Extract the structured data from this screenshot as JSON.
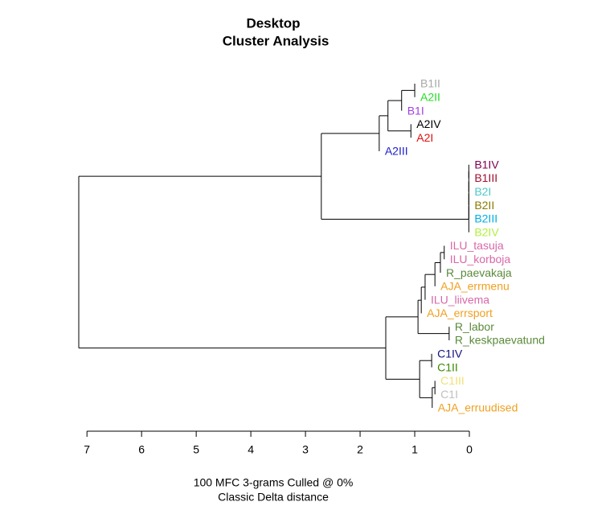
{
  "chart_data": {
    "type": "dendrogram",
    "title": "Desktop",
    "subtitle": "Cluster Analysis",
    "xlabel": [
      "100 MFC 3-grams Culled @ 0%",
      "Classic Delta distance"
    ],
    "leaves": [
      {
        "label": "B1II",
        "color": "#a8a8a8"
      },
      {
        "label": "A2II",
        "color": "#22dd22"
      },
      {
        "label": "B1I",
        "color": "#a040e0"
      },
      {
        "label": "A2IV",
        "color": "#000000"
      },
      {
        "label": "A2I",
        "color": "#e01010"
      },
      {
        "label": "A2III",
        "color": "#2020cc"
      },
      {
        "label": "B1IV",
        "color": "#800050"
      },
      {
        "label": "B1III",
        "color": "#a01030"
      },
      {
        "label": "B2I",
        "color": "#50c8c8"
      },
      {
        "label": "B2II",
        "color": "#8b7b00"
      },
      {
        "label": "B2III",
        "color": "#00b0e0"
      },
      {
        "label": "B2IV",
        "color": "#b0f040"
      },
      {
        "label": "ILU_tasuja",
        "color": "#d868a8"
      },
      {
        "label": "ILU_korboja",
        "color": "#d868a8"
      },
      {
        "label": "R_paevakaja",
        "color": "#5a8a3a"
      },
      {
        "label": "AJA_errmenu",
        "color": "#f0a020"
      },
      {
        "label": "ILU_liivema",
        "color": "#d868a8"
      },
      {
        "label": "AJA_errsport",
        "color": "#f0a020"
      },
      {
        "label": "R_labor",
        "color": "#5a8a3a"
      },
      {
        "label": "R_keskpaevatund",
        "color": "#5a8a3a"
      },
      {
        "label": "C1IV",
        "color": "#101080"
      },
      {
        "label": "C1II",
        "color": "#3a8a00"
      },
      {
        "label": "C1III",
        "color": "#f0e078"
      },
      {
        "label": "C1I",
        "color": "#c0c0c0"
      },
      {
        "label": "AJA_erruudised",
        "color": "#f0a020"
      }
    ],
    "merges": [
      {
        "children": [
          -1,
          -2
        ],
        "height": 1.0
      },
      {
        "children": [
          1,
          -3
        ],
        "height": 1.24
      },
      {
        "children": [
          -4,
          -5
        ],
        "height": 1.07
      },
      {
        "children": [
          2,
          3
        ],
        "height": 1.49
      },
      {
        "children": [
          4,
          -6
        ],
        "height": 1.65
      },
      {
        "children": [
          -7,
          -8
        ],
        "height": 0.01
      },
      {
        "children": [
          6,
          -9
        ],
        "height": 0.01
      },
      {
        "children": [
          7,
          -10
        ],
        "height": 0.01
      },
      {
        "children": [
          8,
          -11
        ],
        "height": 0.01
      },
      {
        "children": [
          9,
          -12
        ],
        "height": 0.01
      },
      {
        "children": [
          5,
          10
        ],
        "height": 2.71
      },
      {
        "children": [
          -13,
          -14
        ],
        "height": 0.46
      },
      {
        "children": [
          12,
          -15
        ],
        "height": 0.53
      },
      {
        "children": [
          13,
          -16
        ],
        "height": 0.63
      },
      {
        "children": [
          14,
          -17
        ],
        "height": 0.81
      },
      {
        "children": [
          15,
          -18
        ],
        "height": 0.88
      },
      {
        "children": [
          -19,
          -20
        ],
        "height": 0.37
      },
      {
        "children": [
          16,
          17
        ],
        "height": 0.94
      },
      {
        "children": [
          -21,
          -22
        ],
        "height": 0.69
      },
      {
        "children": [
          -23,
          -24
        ],
        "height": 0.63
      },
      {
        "children": [
          20,
          -25
        ],
        "height": 0.68
      },
      {
        "children": [
          19,
          21
        ],
        "height": 0.91
      },
      {
        "children": [
          18,
          22
        ],
        "height": 1.53
      },
      {
        "children": [
          11,
          23
        ],
        "height": 7.15
      }
    ],
    "xlim": [
      7.15,
      0
    ],
    "xticks": [
      7,
      6,
      5,
      4,
      3,
      2,
      1,
      0
    ]
  }
}
